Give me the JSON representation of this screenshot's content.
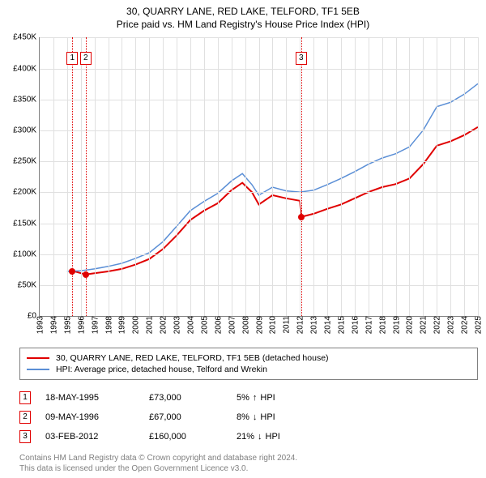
{
  "title_line1": "30, QUARRY LANE, RED LAKE, TELFORD, TF1 5EB",
  "title_line2": "Price paid vs. HM Land Registry's House Price Index (HPI)",
  "chart": {
    "type": "line",
    "x_min_year": 1993,
    "x_max_year": 2025,
    "x_tick_years": [
      1993,
      1994,
      1995,
      1996,
      1997,
      1998,
      1999,
      2000,
      2001,
      2002,
      2003,
      2004,
      2005,
      2006,
      2007,
      2008,
      2009,
      2010,
      2011,
      2012,
      2013,
      2014,
      2015,
      2016,
      2017,
      2018,
      2019,
      2020,
      2021,
      2022,
      2023,
      2024,
      2025
    ],
    "y_min": 0,
    "y_max": 450000,
    "y_tick_step": 50000,
    "y_tick_labels": [
      "£0",
      "£50K",
      "£100K",
      "£150K",
      "£200K",
      "£250K",
      "£300K",
      "£350K",
      "£400K",
      "£450K"
    ],
    "grid_color": "#e0e0e0",
    "axis_color": "#808080",
    "background_color": "#ffffff",
    "series": [
      {
        "name": "property",
        "label": "30, QUARRY LANE, RED LAKE, TELFORD, TF1 5EB (detached house)",
        "color": "#e00000",
        "width": 2,
        "points": [
          [
            1995.38,
            73000
          ],
          [
            1996.36,
            67000
          ],
          [
            1997,
            69000
          ],
          [
            1998,
            72000
          ],
          [
            1999,
            76000
          ],
          [
            2000,
            83000
          ],
          [
            2001,
            92000
          ],
          [
            2002,
            108000
          ],
          [
            2003,
            130000
          ],
          [
            2004,
            155000
          ],
          [
            2005,
            170000
          ],
          [
            2006,
            182000
          ],
          [
            2007,
            203000
          ],
          [
            2007.8,
            215000
          ],
          [
            2008.5,
            200000
          ],
          [
            2009,
            180000
          ],
          [
            2010,
            195000
          ],
          [
            2011,
            190000
          ],
          [
            2012,
            186000
          ],
          [
            2012.09,
            160000
          ],
          [
            2013,
            165000
          ],
          [
            2014,
            173000
          ],
          [
            2015,
            180000
          ],
          [
            2016,
            190000
          ],
          [
            2017,
            200000
          ],
          [
            2018,
            208000
          ],
          [
            2019,
            213000
          ],
          [
            2020,
            222000
          ],
          [
            2021,
            245000
          ],
          [
            2022,
            275000
          ],
          [
            2023,
            282000
          ],
          [
            2024,
            292000
          ],
          [
            2025,
            305000
          ]
        ]
      },
      {
        "name": "hpi",
        "label": "HPI: Average price, detached house, Telford and Wrekin",
        "color": "#5b8fd6",
        "width": 1.5,
        "points": [
          [
            1995,
            72000
          ],
          [
            1996,
            73000
          ],
          [
            1997,
            76000
          ],
          [
            1998,
            80000
          ],
          [
            1999,
            85000
          ],
          [
            2000,
            93000
          ],
          [
            2001,
            102000
          ],
          [
            2002,
            120000
          ],
          [
            2003,
            145000
          ],
          [
            2004,
            170000
          ],
          [
            2005,
            185000
          ],
          [
            2006,
            198000
          ],
          [
            2007,
            218000
          ],
          [
            2007.8,
            230000
          ],
          [
            2008.5,
            212000
          ],
          [
            2009,
            195000
          ],
          [
            2010,
            208000
          ],
          [
            2011,
            202000
          ],
          [
            2012,
            200000
          ],
          [
            2013,
            203000
          ],
          [
            2014,
            212000
          ],
          [
            2015,
            222000
          ],
          [
            2016,
            233000
          ],
          [
            2017,
            245000
          ],
          [
            2018,
            255000
          ],
          [
            2019,
            262000
          ],
          [
            2020,
            273000
          ],
          [
            2021,
            300000
          ],
          [
            2022,
            338000
          ],
          [
            2023,
            345000
          ],
          [
            2024,
            358000
          ],
          [
            2025,
            375000
          ]
        ]
      }
    ],
    "markers": [
      {
        "id": "1",
        "year": 1995.38,
        "price": 73000,
        "box_top": 18
      },
      {
        "id": "2",
        "year": 1996.36,
        "price": 67000,
        "box_top": 18
      },
      {
        "id": "3",
        "year": 2012.09,
        "price": 160000,
        "box_top": 18
      }
    ],
    "marker_color": "#e00000"
  },
  "marker_rows": [
    {
      "id": "1",
      "date": "18-MAY-1995",
      "price": "£73,000",
      "pct": "5%",
      "arrow": "↑",
      "suffix": "HPI"
    },
    {
      "id": "2",
      "date": "09-MAY-1996",
      "price": "£67,000",
      "pct": "8%",
      "arrow": "↓",
      "suffix": "HPI"
    },
    {
      "id": "3",
      "date": "03-FEB-2012",
      "price": "£160,000",
      "pct": "21%",
      "arrow": "↓",
      "suffix": "HPI"
    }
  ],
  "footer_line1": "Contains HM Land Registry data © Crown copyright and database right 2024.",
  "footer_line2": "This data is licensed under the Open Government Licence v3.0."
}
